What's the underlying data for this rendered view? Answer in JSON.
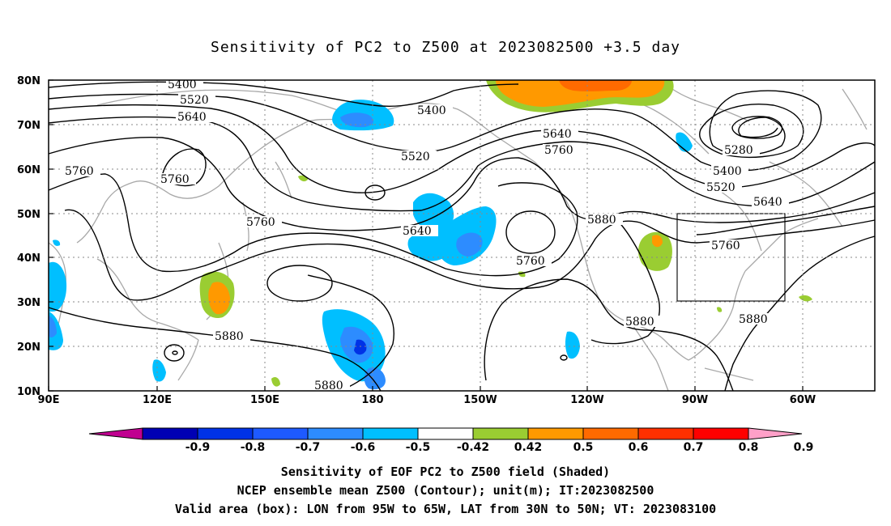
{
  "title": "Sensitivity of PC2 to Z500 at 2023082500 +3.5 day",
  "axes": {
    "lat_labels": [
      "80N",
      "70N",
      "60N",
      "50N",
      "40N",
      "30N",
      "20N",
      "10N"
    ],
    "lon_labels": [
      "90E",
      "120E",
      "150E",
      "180",
      "150W",
      "120W",
      "90W",
      "60W"
    ]
  },
  "contour_labels": [
    "5400",
    "5520",
    "5640",
    "5760",
    "5880",
    "5280"
  ],
  "colorbar": {
    "labels": [
      "-0.9",
      "-0.8",
      "-0.7",
      "-0.6",
      "-0.5",
      "-0.42",
      "0.42",
      "0.5",
      "0.6",
      "0.7",
      "0.8",
      "0.9"
    ],
    "colors": [
      "#c00090",
      "#0000b4",
      "#0032e6",
      "#1e5aff",
      "#2d8cff",
      "#00bfff",
      "#ffffff",
      "#9acd32",
      "#ff9900",
      "#ff6a00",
      "#ff3000",
      "#ff0000",
      "#ffa0c8"
    ]
  },
  "valid_box": {
    "lon": [
      "95W",
      "65W"
    ],
    "lat": [
      "30N",
      "50N"
    ]
  },
  "captions": [
    "Sensitivity of EOF PC2 to Z500 field (Shaded)",
    "NCEP ensemble mean Z500 (Contour); unit(m); IT:2023082500",
    "Valid area (box): LON from 95W to 65W, LAT from 30N to 50N; VT: 2023083100"
  ]
}
